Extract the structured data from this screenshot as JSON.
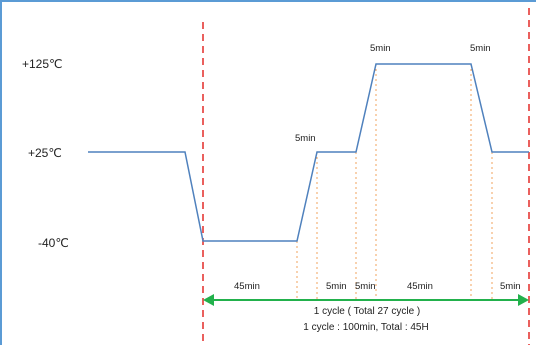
{
  "temperatures": {
    "high": "+125℃",
    "mid": "+25℃",
    "low": "-40℃"
  },
  "dwell_labels": {
    "before_ramp_to_mid": "5min",
    "high_start": "5min",
    "high_end": "5min"
  },
  "segment_durations": [
    "45min",
    "5min",
    "5min",
    "45min",
    "5min"
  ],
  "cycle_caption": "1 cycle ( Total 27 cycle )",
  "cycle_summary": "1 cycle : 100min, Total : 45H",
  "colors": {
    "profile": "#4f81bd",
    "frame": "#5b9bd5",
    "cycle_boundary": "#e53935",
    "segment_guide": "#f0a35e",
    "cycle_arrow": "#22b14c"
  }
}
